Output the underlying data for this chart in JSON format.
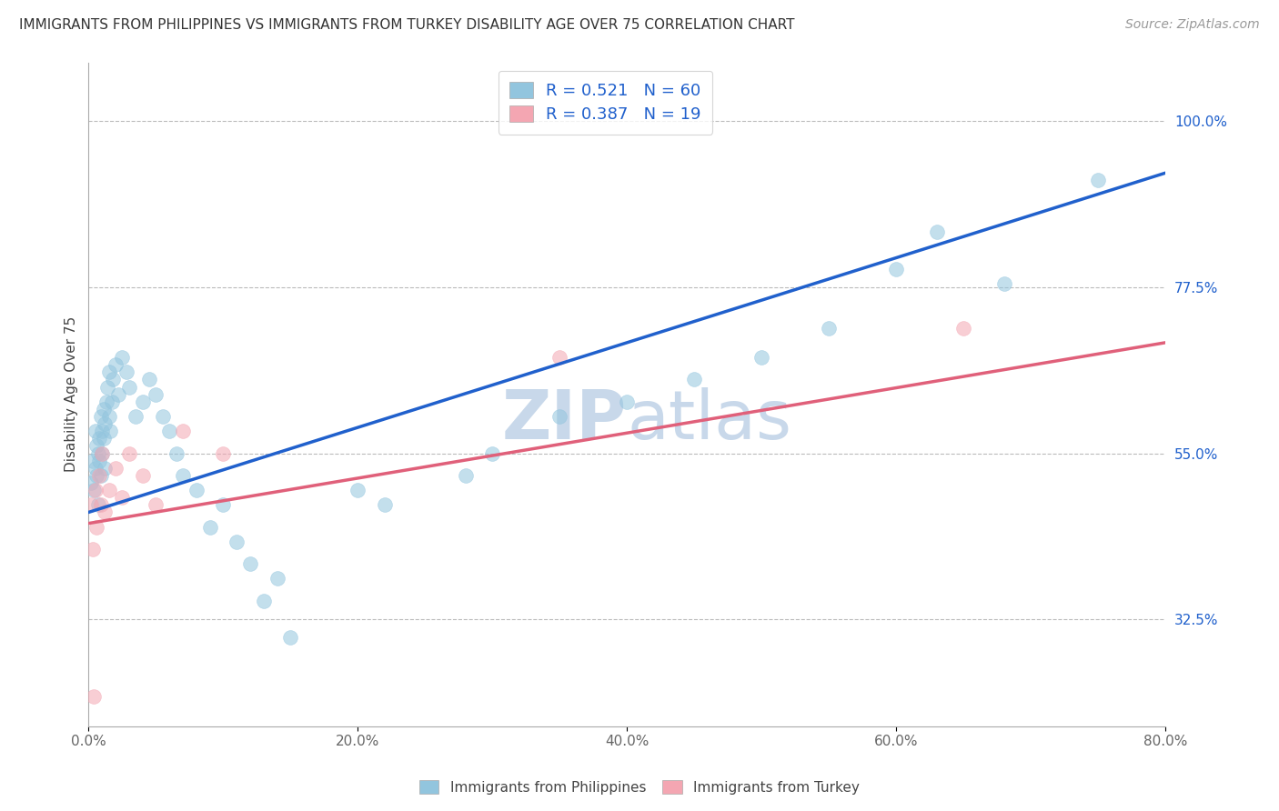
{
  "title": "IMMIGRANTS FROM PHILIPPINES VS IMMIGRANTS FROM TURKEY DISABILITY AGE OVER 75 CORRELATION CHART",
  "source": "Source: ZipAtlas.com",
  "ylabel": "Disability Age Over 75",
  "xlim": [
    0.0,
    80.0
  ],
  "ylim": [
    18.0,
    108.0
  ],
  "yticks_right": [
    32.5,
    55.0,
    77.5,
    100.0
  ],
  "xticks": [
    0.0,
    20.0,
    40.0,
    60.0,
    80.0
  ],
  "r_philippines": 0.521,
  "n_philippines": 60,
  "r_turkey": 0.387,
  "n_turkey": 19,
  "blue_color": "#92c5de",
  "pink_color": "#f4a6b2",
  "blue_line_color": "#2060cc",
  "pink_line_color": "#e0607a",
  "watermark_color": "#c8d8ea",
  "background_color": "#ffffff",
  "legend_text_color": "#2060cc",
  "phil_x": [
    0.2,
    0.3,
    0.4,
    0.5,
    0.5,
    0.6,
    0.6,
    0.7,
    0.7,
    0.8,
    0.8,
    0.9,
    0.9,
    1.0,
    1.0,
    1.1,
    1.1,
    1.2,
    1.2,
    1.3,
    1.4,
    1.5,
    1.5,
    1.6,
    1.7,
    1.8,
    2.0,
    2.2,
    2.5,
    2.8,
    3.0,
    3.5,
    4.0,
    4.5,
    5.0,
    5.5,
    6.0,
    6.5,
    7.0,
    8.0,
    9.0,
    10.0,
    11.0,
    12.0,
    13.0,
    14.0,
    15.0,
    20.0,
    22.0,
    28.0,
    30.0,
    35.0,
    40.0,
    45.0,
    50.0,
    55.0,
    60.0,
    63.0,
    68.0,
    75.0
  ],
  "phil_y": [
    51.0,
    54.0,
    50.0,
    53.0,
    58.0,
    56.0,
    52.0,
    55.0,
    48.0,
    57.0,
    54.0,
    60.0,
    52.0,
    58.0,
    55.0,
    61.0,
    57.0,
    59.0,
    53.0,
    62.0,
    64.0,
    60.0,
    66.0,
    58.0,
    62.0,
    65.0,
    67.0,
    63.0,
    68.0,
    66.0,
    64.0,
    60.0,
    62.0,
    65.0,
    63.0,
    60.0,
    58.0,
    55.0,
    52.0,
    50.0,
    45.0,
    48.0,
    43.0,
    40.0,
    35.0,
    38.0,
    30.0,
    50.0,
    48.0,
    52.0,
    55.0,
    60.0,
    62.0,
    65.0,
    68.0,
    72.0,
    80.0,
    85.0,
    78.0,
    92.0
  ],
  "turkey_x": [
    0.2,
    0.3,
    0.5,
    0.6,
    0.8,
    0.9,
    1.0,
    1.2,
    1.5,
    2.0,
    2.5,
    3.0,
    4.0,
    5.0,
    7.0,
    10.0,
    35.0,
    65.0,
    0.4
  ],
  "turkey_y": [
    48.0,
    42.0,
    50.0,
    45.0,
    52.0,
    48.0,
    55.0,
    47.0,
    50.0,
    53.0,
    49.0,
    55.0,
    52.0,
    48.0,
    58.0,
    55.0,
    68.0,
    72.0,
    22.0
  ],
  "blue_line_x0": 0.0,
  "blue_line_x1": 80.0,
  "blue_line_y0": 47.0,
  "blue_line_y1": 93.0,
  "pink_line_x0": 0.0,
  "pink_line_x1": 80.0,
  "pink_line_y0": 45.5,
  "pink_line_y1": 70.0
}
